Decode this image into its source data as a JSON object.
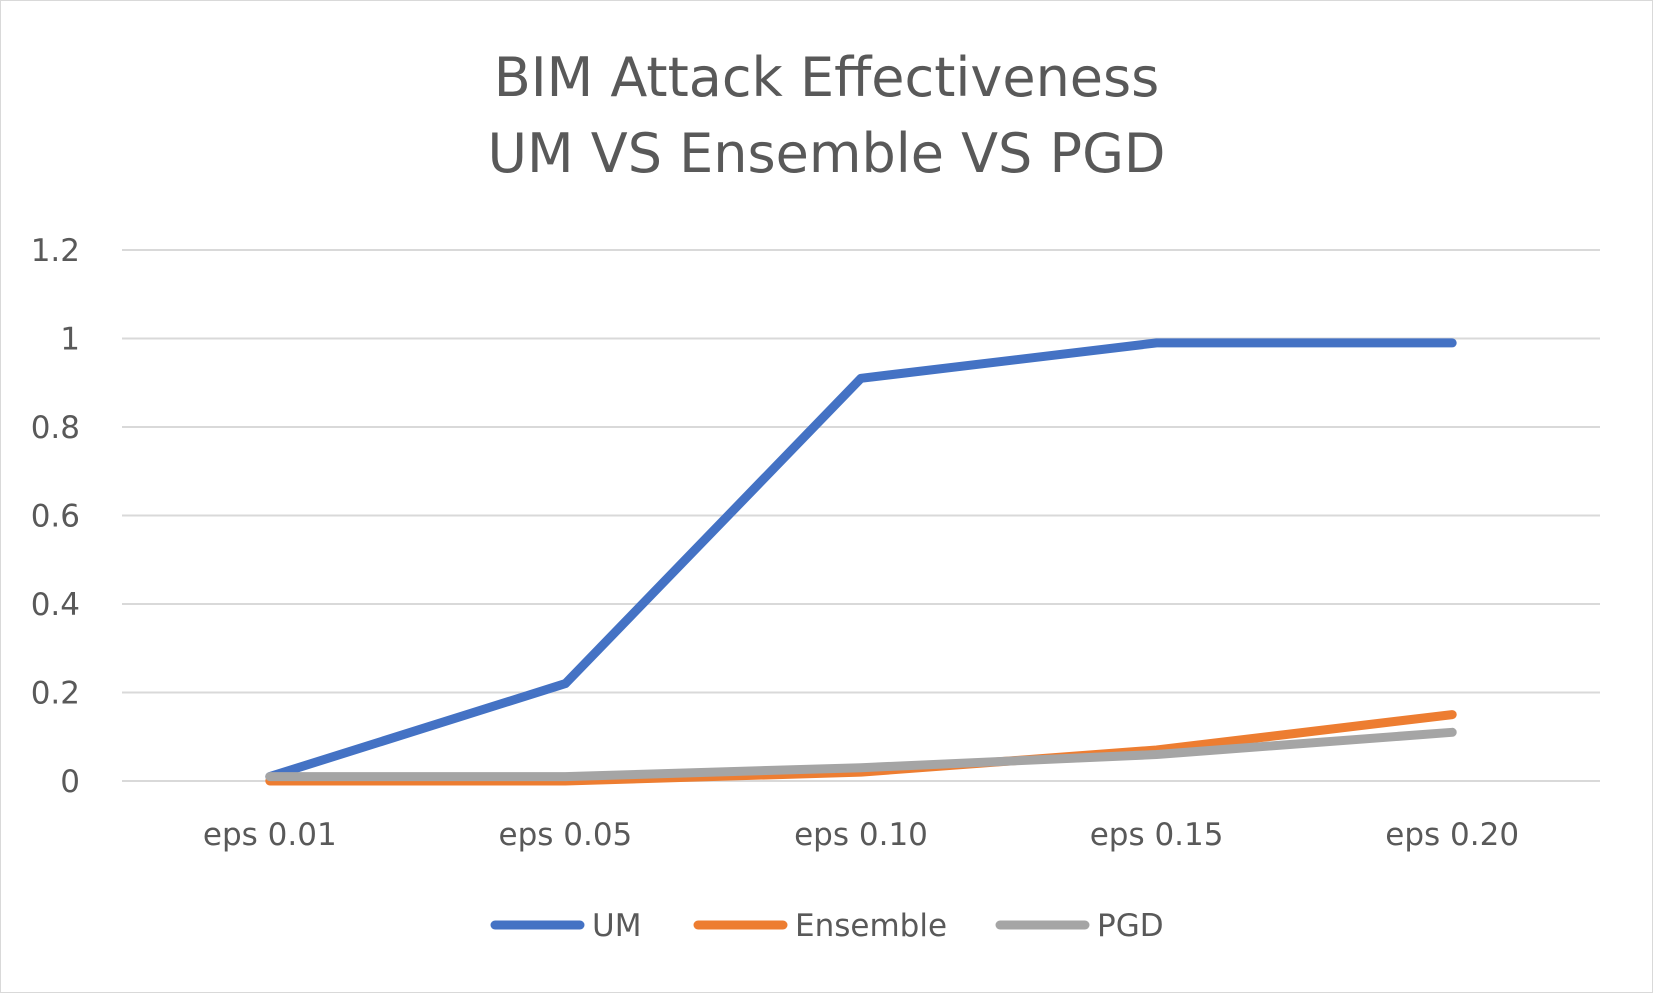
{
  "chart_data": {
    "type": "line",
    "title": [
      "BIM Attack Effectiveness",
      "UM VS Ensemble VS PGD"
    ],
    "categories": [
      "eps 0.01",
      "eps 0.05",
      "eps 0.10",
      "eps 0.15",
      "eps 0.20"
    ],
    "ylim": [
      0,
      1.2
    ],
    "yticks": [
      "0",
      "0.2",
      "0.4",
      "0.6",
      "0.8",
      "1",
      "1.2"
    ],
    "grid": true,
    "legend_position": "bottom",
    "series": [
      {
        "name": "UM",
        "color": "#4472C4",
        "values": [
          0.01,
          0.22,
          0.91,
          0.99,
          0.99
        ]
      },
      {
        "name": "Ensemble",
        "color": "#ED7D31",
        "values": [
          0.0,
          0.0,
          0.02,
          0.07,
          0.15
        ]
      },
      {
        "name": "PGD",
        "color": "#A5A5A5",
        "values": [
          0.01,
          0.01,
          0.03,
          0.06,
          0.11
        ]
      }
    ]
  }
}
